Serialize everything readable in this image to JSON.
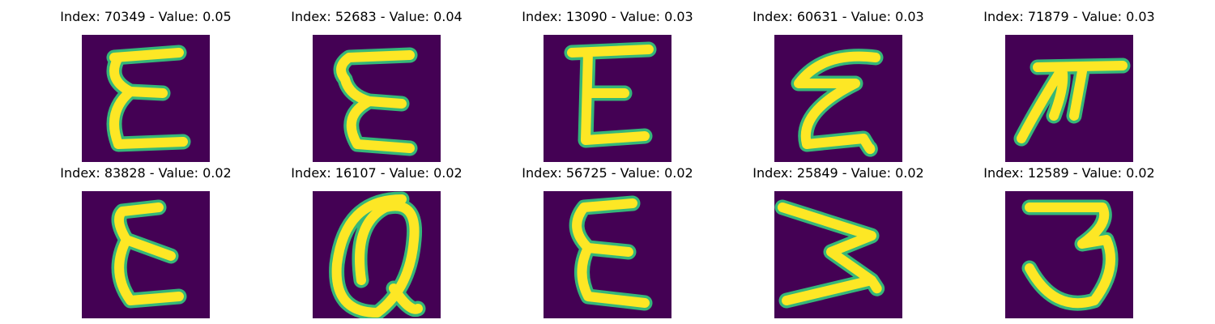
{
  "colormap": {
    "background": "#440154",
    "foreground": "#fde725",
    "edge": "#35b779"
  },
  "panels": [
    {
      "title": "Index: 70349 - Value: 0.05",
      "glyph_icon": "handwritten-epsilon"
    },
    {
      "title": "Index: 52683 - Value: 0.04",
      "glyph_icon": "handwritten-epsilon"
    },
    {
      "title": "Index: 13090 - Value: 0.03",
      "glyph_icon": "handwritten-epsilon"
    },
    {
      "title": "Index: 60631 - Value: 0.03",
      "glyph_icon": "handwritten-epsilon"
    },
    {
      "title": "Index: 71879 - Value: 0.03",
      "glyph_icon": "handwritten-pi"
    },
    {
      "title": "Index: 83828 - Value: 0.02",
      "glyph_icon": "handwritten-epsilon"
    },
    {
      "title": "Index: 16107 - Value: 0.02",
      "glyph_icon": "handwritten-a"
    },
    {
      "title": "Index: 56725 - Value: 0.02",
      "glyph_icon": "handwritten-epsilon"
    },
    {
      "title": "Index: 25849 - Value: 0.02",
      "glyph_icon": "handwritten-three-rotated"
    },
    {
      "title": "Index: 12589 - Value: 0.02",
      "glyph_icon": "handwritten-three"
    }
  ]
}
